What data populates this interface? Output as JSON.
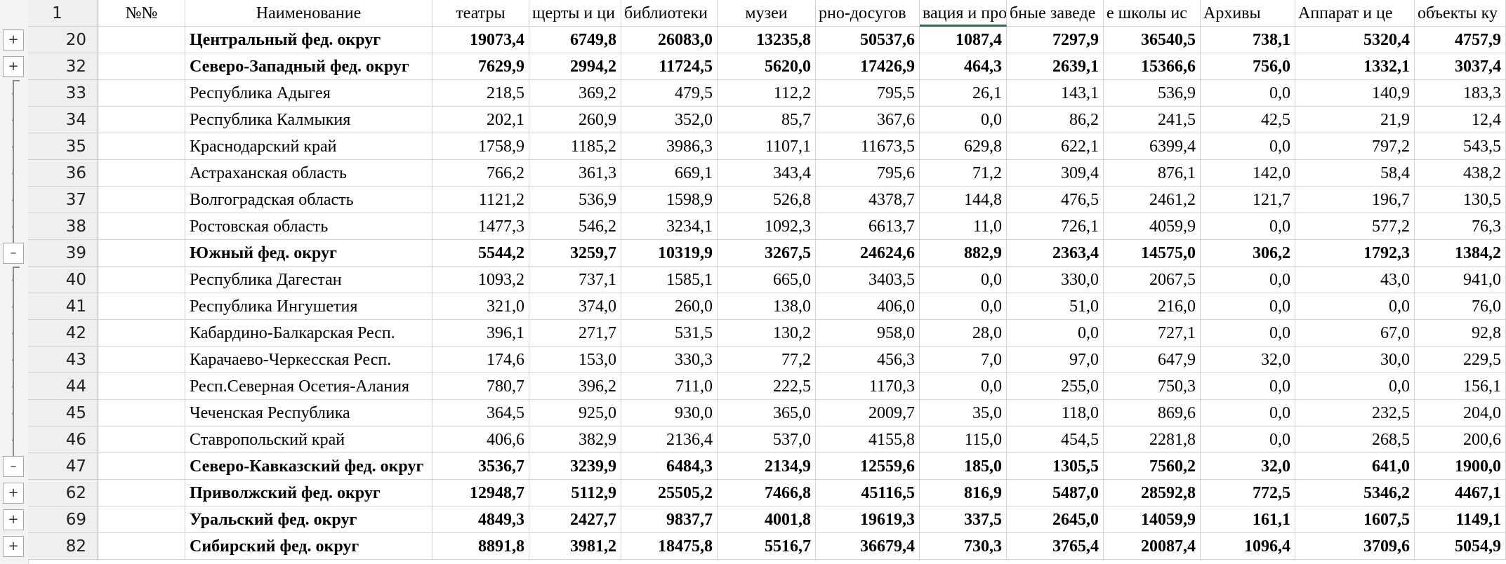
{
  "header": {
    "row_number": "1",
    "col_num": "№№",
    "col_name": "Наименование",
    "columns": [
      "театры",
      "щерты и ци",
      "библиотеки",
      "музеи",
      "рно-досугов",
      "вация и прокат",
      "бные заведе",
      "е школы ис",
      "Архивы",
      "Аппарат и це",
      "объекты ку"
    ]
  },
  "rows": [
    {
      "rownum": "20",
      "num": "",
      "name": "Центральный фед. округ",
      "bold": true,
      "values": [
        "19073,4",
        "6749,8",
        "26083,0",
        "13235,8",
        "50537,6",
        "1087,4",
        "7297,9",
        "36540,5",
        "738,1",
        "5320,4",
        "4757,9"
      ]
    },
    {
      "rownum": "32",
      "num": "",
      "name": "Северо-Западный фед. округ",
      "bold": true,
      "values": [
        "7629,9",
        "2994,2",
        "11724,5",
        "5620,0",
        "17426,9",
        "464,3",
        "2639,1",
        "15366,6",
        "756,0",
        "1332,1",
        "3037,4"
      ]
    },
    {
      "rownum": "33",
      "num": "",
      "name": "Республика Адыгея",
      "bold": false,
      "values": [
        "218,5",
        "369,2",
        "479,5",
        "112,2",
        "795,5",
        "26,1",
        "143,1",
        "536,9",
        "0,0",
        "140,9",
        "183,3"
      ]
    },
    {
      "rownum": "34",
      "num": "",
      "name": "Республика Калмыкия",
      "bold": false,
      "values": [
        "202,1",
        "260,9",
        "352,0",
        "85,7",
        "367,6",
        "0,0",
        "86,2",
        "241,5",
        "42,5",
        "21,9",
        "12,4"
      ]
    },
    {
      "rownum": "35",
      "num": "",
      "name": "Краснодарский край",
      "bold": false,
      "values": [
        "1758,9",
        "1185,2",
        "3986,3",
        "1107,1",
        "11673,5",
        "629,8",
        "622,1",
        "6399,4",
        "0,0",
        "797,2",
        "543,5"
      ]
    },
    {
      "rownum": "36",
      "num": "",
      "name": "Астраханская область",
      "bold": false,
      "values": [
        "766,2",
        "361,3",
        "669,1",
        "343,4",
        "795,6",
        "71,2",
        "309,4",
        "876,1",
        "142,0",
        "58,4",
        "438,2"
      ]
    },
    {
      "rownum": "37",
      "num": "",
      "name": "Волгоградская область",
      "bold": false,
      "values": [
        "1121,2",
        "536,9",
        "1598,9",
        "526,8",
        "4378,7",
        "144,8",
        "476,5",
        "2461,2",
        "121,7",
        "196,7",
        "130,5"
      ]
    },
    {
      "rownum": "38",
      "num": "",
      "name": "Ростовская область",
      "bold": false,
      "values": [
        "1477,3",
        "546,2",
        "3234,1",
        "1092,3",
        "6613,7",
        "11,0",
        "726,1",
        "4059,9",
        "0,0",
        "577,2",
        "76,3"
      ]
    },
    {
      "rownum": "39",
      "num": "",
      "name": "Южный фед. округ",
      "bold": true,
      "values": [
        "5544,2",
        "3259,7",
        "10319,9",
        "3267,5",
        "24624,6",
        "882,9",
        "2363,4",
        "14575,0",
        "306,2",
        "1792,3",
        "1384,2"
      ]
    },
    {
      "rownum": "40",
      "num": "",
      "name": "Республика Дагестан",
      "bold": false,
      "values": [
        "1093,2",
        "737,1",
        "1585,1",
        "665,0",
        "3403,5",
        "0,0",
        "330,0",
        "2067,5",
        "0,0",
        "43,0",
        "941,0"
      ]
    },
    {
      "rownum": "41",
      "num": "",
      "name": "Республика Ингушетия",
      "bold": false,
      "values": [
        "321,0",
        "374,0",
        "260,0",
        "138,0",
        "406,0",
        "0,0",
        "51,0",
        "216,0",
        "0,0",
        "0,0",
        "76,0"
      ]
    },
    {
      "rownum": "42",
      "num": "",
      "name": "Кабардино-Балкарская Респ.",
      "bold": false,
      "values": [
        "396,1",
        "271,7",
        "531,5",
        "130,2",
        "958,0",
        "28,0",
        "0,0",
        "727,1",
        "0,0",
        "67,0",
        "92,8"
      ]
    },
    {
      "rownum": "43",
      "num": "",
      "name": "Карачаево-Черкесская Респ.",
      "bold": false,
      "values": [
        "174,6",
        "153,0",
        "330,3",
        "77,2",
        "456,3",
        "7,0",
        "97,0",
        "647,9",
        "32,0",
        "30,0",
        "229,5"
      ]
    },
    {
      "rownum": "44",
      "num": "",
      "name": "Респ.Северная Осетия-Алания",
      "bold": false,
      "values": [
        "780,7",
        "396,2",
        "711,0",
        "222,5",
        "1170,3",
        "0,0",
        "255,0",
        "750,3",
        "0,0",
        "0,0",
        "156,1"
      ]
    },
    {
      "rownum": "45",
      "num": "",
      "name": "Чеченская Республика",
      "bold": false,
      "values": [
        "364,5",
        "925,0",
        "930,0",
        "365,0",
        "2009,7",
        "35,0",
        "118,0",
        "869,6",
        "0,0",
        "232,5",
        "204,0"
      ]
    },
    {
      "rownum": "46",
      "num": "",
      "name": "Ставропольский край",
      "bold": false,
      "values": [
        "406,6",
        "382,9",
        "2136,4",
        "537,0",
        "4155,8",
        "115,0",
        "454,5",
        "2281,8",
        "0,0",
        "268,5",
        "200,6"
      ]
    },
    {
      "rownum": "47",
      "num": "",
      "name": "Северо-Кавказский фед. округ",
      "bold": true,
      "values": [
        "3536,7",
        "3239,9",
        "6484,3",
        "2134,9",
        "12559,6",
        "185,0",
        "1305,5",
        "7560,2",
        "32,0",
        "641,0",
        "1900,0"
      ]
    },
    {
      "rownum": "62",
      "num": "",
      "name": "Приволжский фед. округ",
      "bold": true,
      "values": [
        "12948,7",
        "5112,9",
        "25505,2",
        "7466,8",
        "45116,5",
        "816,9",
        "5487,0",
        "28592,8",
        "772,5",
        "5346,2",
        "4467,1"
      ]
    },
    {
      "rownum": "69",
      "num": "",
      "name": "Уральский фед. округ",
      "bold": true,
      "values": [
        "4849,3",
        "2427,7",
        "9837,7",
        "4001,8",
        "19619,3",
        "337,5",
        "2645,0",
        "14059,9",
        "161,1",
        "1607,5",
        "1149,1"
      ]
    },
    {
      "rownum": "82",
      "num": "",
      "name": "Сибирский фед. округ",
      "bold": true,
      "values": [
        "8891,8",
        "3981,2",
        "18475,8",
        "5516,7",
        "36679,4",
        "730,3",
        "3765,4",
        "20087,4",
        "1096,4",
        "3709,6",
        "5054,9"
      ]
    }
  ],
  "outline": {
    "expand_symbol": "+",
    "collapse_symbol": "–",
    "buttons": [
      {
        "row": "20",
        "symbol": "+"
      },
      {
        "row": "32",
        "symbol": "+"
      },
      {
        "row": "39",
        "symbol": "–"
      },
      {
        "row": "47",
        "symbol": "–"
      },
      {
        "row": "62",
        "symbol": "+"
      },
      {
        "row": "69",
        "symbol": "+"
      },
      {
        "row": "82",
        "symbol": "+"
      }
    ]
  },
  "colors": {
    "header_bg": "#efefef",
    "gridline": "#d4d4d4",
    "selected_column_accent": "#217346"
  }
}
